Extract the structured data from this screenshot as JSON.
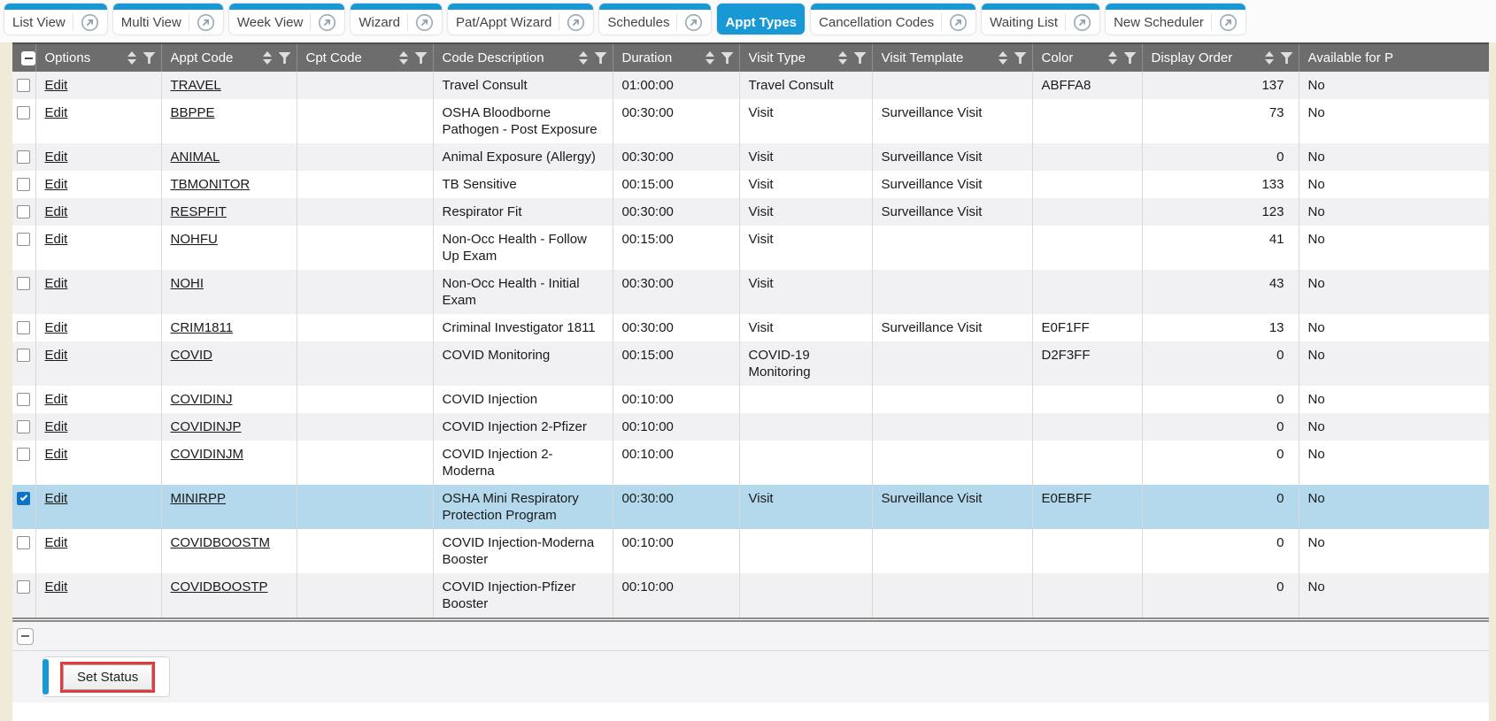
{
  "tab_bar": {
    "tabs": [
      {
        "label": "List View",
        "active": false
      },
      {
        "label": "Multi View",
        "active": false
      },
      {
        "label": "Week View",
        "active": false
      },
      {
        "label": "Wizard",
        "active": false
      },
      {
        "label": "Pat/Appt Wizard",
        "active": false
      },
      {
        "label": "Schedules",
        "active": false
      },
      {
        "label": "Appt Types",
        "active": true
      },
      {
        "label": "Cancellation Codes",
        "active": false
      },
      {
        "label": "Waiting List",
        "active": false
      },
      {
        "label": "New Scheduler",
        "active": false
      }
    ]
  },
  "table": {
    "columns": [
      {
        "label": "Options",
        "sort": true,
        "filter": true
      },
      {
        "label": "Appt Code",
        "sort": true,
        "filter": true
      },
      {
        "label": "Cpt Code",
        "sort": true,
        "filter": true
      },
      {
        "label": "Code Description",
        "sort": true,
        "filter": true
      },
      {
        "label": "Duration",
        "sort": true,
        "filter": true
      },
      {
        "label": "Visit Type",
        "sort": true,
        "filter": true
      },
      {
        "label": "Visit Template",
        "sort": true,
        "filter": true
      },
      {
        "label": "Color",
        "sort": true,
        "filter": true
      },
      {
        "label": "Display Order",
        "sort": true,
        "filter": true
      },
      {
        "label": "Available for P",
        "sort": false,
        "filter": false
      }
    ],
    "rows": [
      {
        "selected": false,
        "options": "Edit",
        "appt_code": "TRAVEL",
        "cpt_code": "",
        "description": "Travel Consult",
        "duration": "01:00:00",
        "visit_type": "Travel Consult",
        "visit_template": "",
        "color": "ABFFA8",
        "display_order": "137",
        "available": "No"
      },
      {
        "selected": false,
        "options": "Edit",
        "appt_code": "BBPPE",
        "cpt_code": "",
        "description": "OSHA Bloodborne Pathogen - Post Exposure",
        "duration": "00:30:00",
        "visit_type": "Visit",
        "visit_template": "Surveillance Visit",
        "color": "",
        "display_order": "73",
        "available": "No"
      },
      {
        "selected": false,
        "options": "Edit",
        "appt_code": "ANIMAL",
        "cpt_code": "",
        "description": "Animal Exposure (Allergy)",
        "duration": "00:30:00",
        "visit_type": "Visit",
        "visit_template": "Surveillance Visit",
        "color": "",
        "display_order": "0",
        "available": "No"
      },
      {
        "selected": false,
        "options": "Edit",
        "appt_code": "TBMONITOR",
        "cpt_code": "",
        "description": "TB Sensitive",
        "duration": "00:15:00",
        "visit_type": "Visit",
        "visit_template": "Surveillance Visit",
        "color": "",
        "display_order": "133",
        "available": "No"
      },
      {
        "selected": false,
        "options": "Edit",
        "appt_code": "RESPFIT",
        "cpt_code": "",
        "description": "Respirator Fit",
        "duration": "00:30:00",
        "visit_type": "Visit",
        "visit_template": "Surveillance Visit",
        "color": "",
        "display_order": "123",
        "available": "No"
      },
      {
        "selected": false,
        "options": "Edit",
        "appt_code": "NOHFU",
        "cpt_code": "",
        "description": "Non-Occ Health - Follow Up Exam",
        "duration": "00:15:00",
        "visit_type": "Visit",
        "visit_template": "",
        "color": "",
        "display_order": "41",
        "available": "No"
      },
      {
        "selected": false,
        "options": "Edit",
        "appt_code": "NOHI",
        "cpt_code": "",
        "description": "Non-Occ Health - Initial Exam",
        "duration": "00:30:00",
        "visit_type": "Visit",
        "visit_template": "",
        "color": "",
        "display_order": "43",
        "available": "No"
      },
      {
        "selected": false,
        "options": "Edit",
        "appt_code": "CRIM1811",
        "cpt_code": "",
        "description": "Criminal Investigator 1811",
        "duration": "00:30:00",
        "visit_type": "Visit",
        "visit_template": "Surveillance Visit",
        "color": "E0F1FF",
        "display_order": "13",
        "available": "No"
      },
      {
        "selected": false,
        "options": "Edit",
        "appt_code": "COVID",
        "cpt_code": "",
        "description": "COVID Monitoring",
        "duration": "00:15:00",
        "visit_type": "COVID-19 Monitoring",
        "visit_template": "",
        "color": "D2F3FF",
        "display_order": "0",
        "available": "No"
      },
      {
        "selected": false,
        "options": "Edit",
        "appt_code": "COVIDINJ",
        "cpt_code": "",
        "description": "COVID Injection",
        "duration": "00:10:00",
        "visit_type": "",
        "visit_template": "",
        "color": "",
        "display_order": "0",
        "available": "No"
      },
      {
        "selected": false,
        "options": "Edit",
        "appt_code": "COVIDINJP",
        "cpt_code": "",
        "description": "COVID Injection 2-Pfizer",
        "duration": "00:10:00",
        "visit_type": "",
        "visit_template": "",
        "color": "",
        "display_order": "0",
        "available": "No"
      },
      {
        "selected": false,
        "options": "Edit",
        "appt_code": "COVIDINJM",
        "cpt_code": "",
        "description": "COVID Injection 2-Moderna",
        "duration": "00:10:00",
        "visit_type": "",
        "visit_template": "",
        "color": "",
        "display_order": "0",
        "available": "No"
      },
      {
        "selected": true,
        "options": "Edit",
        "appt_code": "MINIRPP",
        "cpt_code": "",
        "description": "OSHA Mini Respiratory Protection Program",
        "duration": "00:30:00",
        "visit_type": "Visit",
        "visit_template": "Surveillance Visit",
        "color": "E0EBFF",
        "display_order": "0",
        "available": "No"
      },
      {
        "selected": false,
        "options": "Edit",
        "appt_code": "COVIDBOOSTM",
        "cpt_code": "",
        "description": "COVID Injection-Moderna Booster",
        "duration": "00:10:00",
        "visit_type": "",
        "visit_template": "",
        "color": "",
        "display_order": "0",
        "available": "No"
      },
      {
        "selected": false,
        "options": "Edit",
        "appt_code": "COVIDBOOSTP",
        "cpt_code": "",
        "description": "COVID Injection-Pfizer Booster",
        "duration": "00:10:00",
        "visit_type": "",
        "visit_template": "",
        "color": "",
        "display_order": "0",
        "available": "No"
      }
    ]
  },
  "footer": {
    "set_status_button": "Set Status"
  },
  "colors": {
    "accent_blue": "#1899D6",
    "selected_row": "#B4D9EC",
    "annotation_red": "#E23B3B",
    "header_gray": "#6D6D6D",
    "page_background": "#F0EAD9"
  }
}
